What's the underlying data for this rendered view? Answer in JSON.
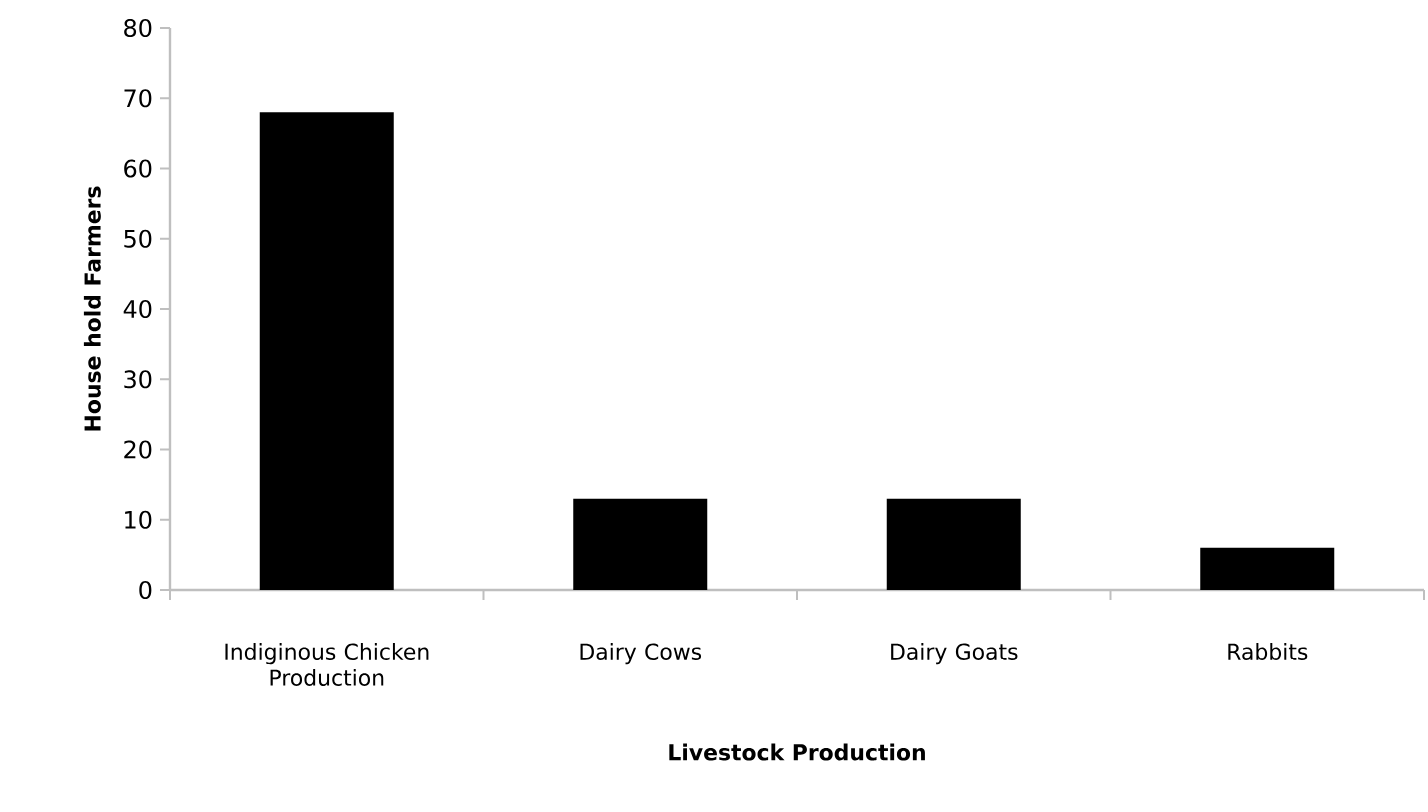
{
  "chart_data": {
    "type": "bar",
    "xlabel": "Livestock Production",
    "ylabel": "House hold Farmers",
    "categories": [
      "Indiginous Chicken Production",
      "Dairy Cows",
      "Dairy Goats",
      "Rabbits"
    ],
    "values": [
      68,
      13,
      13,
      6
    ],
    "color": "#000000",
    "ylim": [
      0,
      80
    ],
    "yticks": [
      0,
      10,
      20,
      30,
      40,
      50,
      60,
      70,
      80
    ]
  }
}
